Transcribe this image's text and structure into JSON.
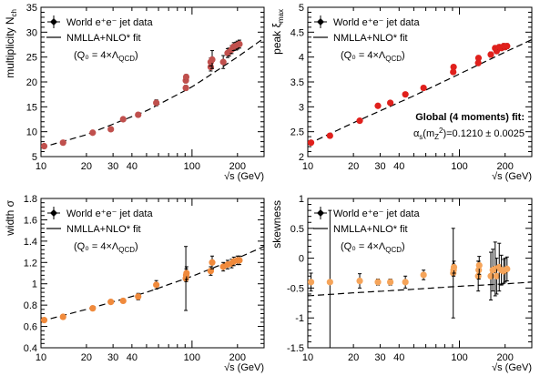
{
  "chart_data": [
    {
      "type": "scatter",
      "name": "multiplicity",
      "ylabel": "multiplicity N",
      "ylabel_sub": "ch",
      "xlabel": "√s (GeV)",
      "xscale": "log",
      "xlim": [
        10,
        300
      ],
      "ylim": [
        5,
        35
      ],
      "yticks": [
        "5",
        "10",
        "15",
        "20",
        "25",
        "30",
        "35"
      ],
      "ytick_values": [
        5,
        10,
        15,
        20,
        25,
        30,
        35
      ],
      "xticks": [
        "10",
        "20",
        "30",
        "40",
        "100",
        "200"
      ],
      "xtick_values": [
        10,
        20,
        30,
        40,
        100,
        200
      ],
      "grid": false,
      "legend_placement": "top-left",
      "legend": {
        "data_label": "World e⁺e⁻ jet data",
        "fit_label": "NMLLA+NLO* fit",
        "param_label": "(Q₀ = 4×Λ",
        "param_sub": "QCD",
        "param_close": ")"
      },
      "marker_color": "#c0504d",
      "points": [
        {
          "x": 10.5,
          "y": 7.1,
          "err": 0.3
        },
        {
          "x": 14,
          "y": 7.8,
          "err": 0.3
        },
        {
          "x": 22,
          "y": 9.8,
          "err": 0.3
        },
        {
          "x": 29,
          "y": 10.5,
          "err": 0.3
        },
        {
          "x": 35,
          "y": 12.5,
          "err": 0.4
        },
        {
          "x": 44,
          "y": 13.4,
          "err": 0.4
        },
        {
          "x": 58,
          "y": 15.8,
          "err": 0.6
        },
        {
          "x": 91,
          "y": 18.8,
          "err": 0.5
        },
        {
          "x": 91,
          "y": 20.3,
          "err": 0.5
        },
        {
          "x": 91.5,
          "y": 21.0,
          "err": 0.5
        },
        {
          "x": 133,
          "y": 23.0,
          "err": 0.8
        },
        {
          "x": 133,
          "y": 24.0,
          "err": 0.8
        },
        {
          "x": 136,
          "y": 24.5,
          "err": 1.8
        },
        {
          "x": 161,
          "y": 24.0,
          "err": 1.3
        },
        {
          "x": 172,
          "y": 25.8,
          "err": 0.9
        },
        {
          "x": 176,
          "y": 26.0,
          "err": 0.8
        },
        {
          "x": 183,
          "y": 26.5,
          "err": 0.8
        },
        {
          "x": 189,
          "y": 27.1,
          "err": 0.8
        },
        {
          "x": 196,
          "y": 27.2,
          "err": 0.8
        },
        {
          "x": 200,
          "y": 27.4,
          "err": 0.8
        },
        {
          "x": 206,
          "y": 27.6,
          "err": 0.8
        }
      ],
      "fit": {
        "x": [
          10,
          20,
          50,
          100,
          200,
          300
        ],
        "y": [
          6.8,
          9.4,
          14.2,
          19.0,
          25.0,
          28.8
        ]
      }
    },
    {
      "type": "scatter",
      "name": "peak",
      "ylabel": "peak ξ",
      "ylabel_sub": "max",
      "xlabel": "√s (GeV)",
      "xscale": "log",
      "xlim": [
        10,
        300
      ],
      "ylim": [
        2,
        5
      ],
      "yticks": [
        "2",
        "2.5",
        "3",
        "3.5",
        "4",
        "4.5",
        "5"
      ],
      "ytick_values": [
        2,
        2.5,
        3,
        3.5,
        4,
        4.5,
        5
      ],
      "xticks": [
        "10",
        "20",
        "30",
        "40",
        "100",
        "200"
      ],
      "xtick_values": [
        10,
        20,
        30,
        40,
        100,
        200
      ],
      "grid": false,
      "legend_placement": "top-left",
      "legend": {
        "data_label": "World e⁺e⁻ jet data",
        "fit_label": "NMLLA+NLO* fit",
        "param_label": "(Q₀ = 4×Λ",
        "param_sub": "QCD",
        "param_close": ")"
      },
      "annotation": {
        "line1": "Global (4 moments) fit:",
        "line2_pre": "α",
        "line2_sub": "s",
        "line2_arg": "(m",
        "line2_argsub": "Z",
        "line2_argsup": "2",
        "line2_post": ")=0.1210 ± 0.0025"
      },
      "marker_color": "#e0201c",
      "points": [
        {
          "x": 10.5,
          "y": 2.28,
          "err": 0.03
        },
        {
          "x": 14,
          "y": 2.42,
          "err": 0.03
        },
        {
          "x": 22,
          "y": 2.72,
          "err": 0.03
        },
        {
          "x": 29,
          "y": 3.02,
          "err": 0.03
        },
        {
          "x": 35,
          "y": 3.08,
          "err": 0.03
        },
        {
          "x": 44,
          "y": 3.25,
          "err": 0.03
        },
        {
          "x": 58,
          "y": 3.38,
          "err": 0.04
        },
        {
          "x": 91,
          "y": 3.7,
          "err": 0.04
        },
        {
          "x": 91.5,
          "y": 3.8,
          "err": 0.04
        },
        {
          "x": 133,
          "y": 3.88,
          "err": 0.05
        },
        {
          "x": 133.5,
          "y": 3.98,
          "err": 0.05
        },
        {
          "x": 161,
          "y": 4.05,
          "err": 0.05
        },
        {
          "x": 172,
          "y": 4.18,
          "err": 0.05
        },
        {
          "x": 176,
          "y": 4.12,
          "err": 0.05
        },
        {
          "x": 183,
          "y": 4.2,
          "err": 0.05
        },
        {
          "x": 189,
          "y": 4.18,
          "err": 0.05
        },
        {
          "x": 196,
          "y": 4.22,
          "err": 0.05
        },
        {
          "x": 200,
          "y": 4.2,
          "err": 0.05
        },
        {
          "x": 206,
          "y": 4.22,
          "err": 0.05
        }
      ],
      "fit": {
        "x": [
          10,
          20,
          50,
          100,
          200,
          300
        ],
        "y": [
          2.25,
          2.68,
          3.22,
          3.66,
          4.1,
          4.35
        ]
      }
    },
    {
      "type": "scatter",
      "name": "width",
      "ylabel": "width σ",
      "xlabel": "√s (GeV)",
      "xscale": "log",
      "xlim": [
        10,
        300
      ],
      "ylim": [
        0.4,
        1.8
      ],
      "yticks": [
        "0.4",
        "0.6",
        "0.8",
        "1",
        "1.2",
        "1.4",
        "1.6",
        "1.8"
      ],
      "ytick_values": [
        0.4,
        0.6,
        0.8,
        1,
        1.2,
        1.4,
        1.6,
        1.8
      ],
      "xticks": [
        "10",
        "20",
        "30",
        "40",
        "100",
        "200"
      ],
      "xtick_values": [
        10,
        20,
        30,
        40,
        100,
        200
      ],
      "grid": false,
      "legend_placement": "top-left",
      "legend": {
        "data_label": "World e⁺e⁻ jet data",
        "fit_label": "NMLLA+NLO* fit",
        "param_label": "(Q₀ = 4×Λ",
        "param_sub": "QCD",
        "param_close": ")"
      },
      "marker_color": "#f08a3c",
      "points": [
        {
          "x": 10.5,
          "y": 0.66,
          "err": 0.02
        },
        {
          "x": 14,
          "y": 0.69,
          "err": 0.02
        },
        {
          "x": 22,
          "y": 0.77,
          "err": 0.02
        },
        {
          "x": 29,
          "y": 0.83,
          "err": 0.02
        },
        {
          "x": 35,
          "y": 0.84,
          "err": 0.02
        },
        {
          "x": 44,
          "y": 0.88,
          "err": 0.03
        },
        {
          "x": 58,
          "y": 0.99,
          "err": 0.04
        },
        {
          "x": 91,
          "y": 1.05,
          "err": 0.3
        },
        {
          "x": 91.5,
          "y": 1.08,
          "err": 0.06
        },
        {
          "x": 92,
          "y": 1.1,
          "err": 0.06
        },
        {
          "x": 133,
          "y": 1.12,
          "err": 0.04
        },
        {
          "x": 136,
          "y": 1.2,
          "err": 0.06
        },
        {
          "x": 161,
          "y": 1.16,
          "err": 0.04
        },
        {
          "x": 172,
          "y": 1.18,
          "err": 0.04
        },
        {
          "x": 183,
          "y": 1.19,
          "err": 0.04
        },
        {
          "x": 189,
          "y": 1.21,
          "err": 0.04
        },
        {
          "x": 200,
          "y": 1.22,
          "err": 0.04
        },
        {
          "x": 206,
          "y": 1.22,
          "err": 0.04
        }
      ],
      "fit": {
        "x": [
          10,
          20,
          50,
          100,
          200,
          300
        ],
        "y": [
          0.65,
          0.76,
          0.92,
          1.07,
          1.24,
          1.35
        ]
      }
    },
    {
      "type": "scatter",
      "name": "skewness",
      "ylabel": "skewness",
      "xlabel": "√s (GeV)",
      "xscale": "log",
      "xlim": [
        10,
        300
      ],
      "ylim": [
        -1.5,
        1
      ],
      "yticks": [
        "-1.5",
        "-1",
        "-0.5",
        "0",
        "0.5",
        "1"
      ],
      "ytick_values": [
        -1.5,
        -1,
        -0.5,
        0,
        0.5,
        1
      ],
      "xticks": [
        "10",
        "20",
        "30",
        "40",
        "100",
        "200"
      ],
      "xtick_values": [
        10,
        20,
        30,
        40,
        100,
        200
      ],
      "grid": false,
      "legend_placement": "top-left",
      "legend": {
        "data_label": "World e⁺e⁻ jet data",
        "fit_label": "NMLLA+NLO* fit",
        "param_label": "(Q₀ = 4×Λ",
        "param_sub": "QCD",
        "param_close": ")"
      },
      "marker_color": "#f5a45a",
      "points": [
        {
          "x": 10.5,
          "y": -0.4,
          "err": 0.15
        },
        {
          "x": 14,
          "y": -0.4,
          "err": 1.2
        },
        {
          "x": 22,
          "y": -0.38,
          "err": 0.12
        },
        {
          "x": 29,
          "y": -0.4,
          "err": 0.05
        },
        {
          "x": 35,
          "y": -0.4,
          "err": 0.05
        },
        {
          "x": 44,
          "y": -0.4,
          "err": 0.1
        },
        {
          "x": 58,
          "y": -0.28,
          "err": 0.08
        },
        {
          "x": 91,
          "y": -0.25,
          "err": 0.75
        },
        {
          "x": 91.5,
          "y": -0.2,
          "err": 0.1
        },
        {
          "x": 92,
          "y": -0.15,
          "err": 0.1
        },
        {
          "x": 133,
          "y": -0.3,
          "err": 0.25
        },
        {
          "x": 134,
          "y": -0.2,
          "err": 0.15
        },
        {
          "x": 135,
          "y": -0.12,
          "err": 0.15
        },
        {
          "x": 161,
          "y": -0.3,
          "err": 0.4
        },
        {
          "x": 166,
          "y": -0.2,
          "err": 0.35
        },
        {
          "x": 172,
          "y": -0.18,
          "err": 0.45
        },
        {
          "x": 176,
          "y": -0.3,
          "err": 0.3
        },
        {
          "x": 183,
          "y": -0.15,
          "err": 0.4
        },
        {
          "x": 189,
          "y": -0.2,
          "err": 0.25
        },
        {
          "x": 196,
          "y": -0.22,
          "err": 0.2
        },
        {
          "x": 200,
          "y": -0.2,
          "err": 0.2
        },
        {
          "x": 206,
          "y": -0.18,
          "err": 0.2
        }
      ],
      "fit": {
        "x": [
          10,
          20,
          50,
          100,
          200,
          300
        ],
        "y": [
          -0.63,
          -0.58,
          -0.52,
          -0.47,
          -0.43,
          -0.4
        ]
      }
    }
  ]
}
